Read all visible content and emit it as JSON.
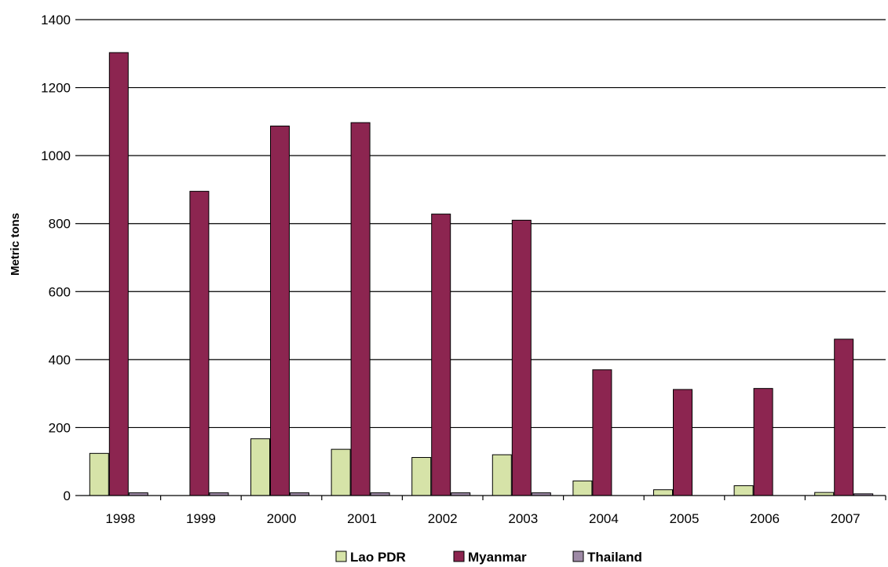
{
  "chart_data": {
    "type": "bar",
    "title": "",
    "xlabel": "",
    "ylabel": "Metric tons",
    "ylim": [
      0,
      1400
    ],
    "yticks": [
      0,
      200,
      400,
      600,
      800,
      1000,
      1200,
      1400
    ],
    "grid": true,
    "legend_position": "bottom",
    "categories": [
      "1998",
      "1999",
      "2000",
      "2001",
      "2002",
      "2003",
      "2004",
      "2005",
      "2006",
      "2007"
    ],
    "series": [
      {
        "name": "Lao PDR",
        "color": "#d6e3a8",
        "values": [
          124,
          0,
          167,
          136,
          112,
          120,
          43,
          17,
          29,
          9
        ]
      },
      {
        "name": "Myanmar",
        "color": "#8c2550",
        "values": [
          1303,
          895,
          1087,
          1097,
          828,
          810,
          370,
          312,
          315,
          460
        ]
      },
      {
        "name": "Thailand",
        "color": "#9e8aa6",
        "values": [
          8,
          8,
          8,
          8,
          8,
          8,
          0,
          0,
          0,
          5
        ]
      }
    ]
  }
}
